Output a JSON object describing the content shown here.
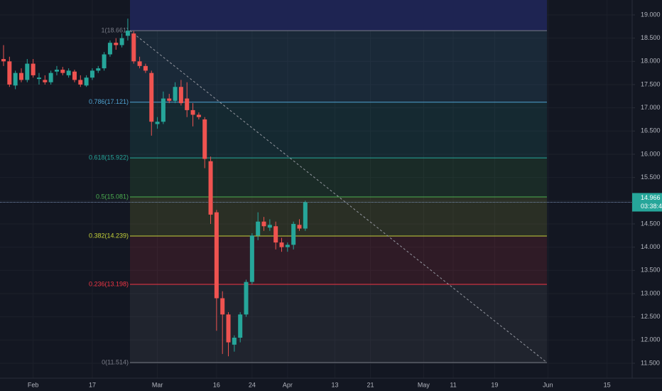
{
  "chart_data": {
    "type": "candlestick",
    "categories": [
      null,
      null,
      null,
      null,
      null,
      "Feb",
      null,
      null,
      null,
      null,
      null,
      null,
      null,
      null,
      null,
      "17",
      null,
      null,
      null,
      null,
      null,
      null,
      null,
      null,
      null,
      null,
      "Mar",
      null,
      null,
      null,
      null,
      null,
      null,
      null,
      null,
      null,
      "16",
      null,
      null,
      null,
      null,
      null,
      "24",
      null,
      null,
      null,
      null,
      null,
      "Apr",
      null,
      null,
      null,
      null,
      null,
      null,
      null,
      "13",
      null,
      null,
      null,
      null,
      null,
      "21",
      null,
      null,
      null,
      null,
      null,
      null,
      null,
      null,
      "May",
      null,
      null,
      null,
      null,
      "11",
      null,
      null,
      null,
      null,
      null,
      null,
      "19",
      null,
      null,
      null,
      null,
      null,
      null,
      null,
      null,
      "Jun",
      null,
      null,
      null,
      null,
      null,
      null,
      null,
      null,
      null,
      "15",
      null,
      null,
      null,
      null
    ],
    "open": [
      18.05,
      18.0,
      17.48,
      17.75,
      17.6,
      17.95,
      17.62,
      17.6,
      17.55,
      17.78,
      17.82,
      17.7,
      17.78,
      17.6,
      17.48,
      17.65,
      17.8,
      17.85,
      18.15,
      18.4,
      18.35,
      18.55,
      18.6,
      18.0,
      17.9,
      17.75,
      16.65,
      16.7,
      17.2,
      17.15,
      17.45,
      17.2,
      16.95,
      16.85,
      16.75,
      15.85,
      14.75,
      12.9,
      12.55,
      11.9,
      12.05,
      12.55,
      13.25,
      14.25,
      14.55,
      14.42,
      14.45,
      14.1,
      14.0,
      14.05,
      14.48,
      14.4,
      null,
      null,
      null,
      null,
      null,
      null,
      null,
      null,
      null,
      null,
      null,
      null,
      null,
      null,
      null,
      null,
      null,
      null,
      null,
      null,
      null,
      null,
      null,
      null,
      null,
      null,
      null,
      null,
      null,
      null,
      null,
      null,
      null,
      null,
      null,
      null,
      null,
      null,
      null,
      null,
      null,
      null,
      null,
      null,
      null,
      null,
      null,
      null,
      null,
      null,
      null,
      null,
      null,
      null,
      null
    ],
    "high": [
      18.35,
      18.1,
      17.8,
      17.85,
      18.05,
      18.05,
      17.75,
      17.7,
      17.8,
      17.9,
      17.88,
      17.85,
      17.82,
      17.7,
      17.7,
      17.85,
      17.9,
      18.2,
      18.45,
      18.5,
      18.6,
      18.92,
      18.65,
      18.1,
      17.95,
      17.8,
      16.8,
      17.35,
      17.3,
      17.55,
      17.6,
      17.55,
      17.1,
      16.9,
      16.8,
      15.95,
      14.8,
      13.05,
      12.6,
      12.1,
      12.6,
      13.3,
      14.3,
      14.75,
      14.65,
      14.6,
      14.55,
      14.2,
      14.1,
      14.55,
      14.6,
      15.0,
      null,
      null,
      null,
      null,
      null,
      null,
      null,
      null,
      null,
      null,
      null,
      null,
      null,
      null,
      null,
      null,
      null,
      null,
      null,
      null,
      null,
      null,
      null,
      null,
      null,
      null,
      null,
      null,
      null,
      null,
      null,
      null,
      null,
      null,
      null,
      null,
      null,
      null,
      null,
      null,
      null,
      null,
      null,
      null,
      null,
      null,
      null,
      null,
      null,
      null,
      null,
      null,
      null,
      null,
      null
    ],
    "low": [
      17.9,
      17.45,
      17.4,
      17.55,
      17.55,
      17.65,
      17.5,
      17.5,
      17.5,
      17.7,
      17.7,
      17.65,
      17.55,
      17.45,
      17.45,
      17.6,
      17.75,
      17.8,
      18.1,
      18.25,
      18.3,
      18.45,
      17.95,
      17.85,
      17.75,
      16.4,
      16.55,
      16.65,
      17.1,
      17.1,
      17.05,
      16.8,
      16.6,
      16.75,
      15.7,
      14.5,
      12.2,
      11.7,
      11.65,
      11.75,
      11.95,
      12.5,
      13.2,
      14.15,
      14.35,
      14.35,
      13.95,
      13.9,
      13.9,
      13.95,
      14.35,
      14.35,
      null,
      null,
      null,
      null,
      null,
      null,
      null,
      null,
      null,
      null,
      null,
      null,
      null,
      null,
      null,
      null,
      null,
      null,
      null,
      null,
      null,
      null,
      null,
      null,
      null,
      null,
      null,
      null,
      null,
      null,
      null,
      null,
      null,
      null,
      null,
      null,
      null,
      null,
      null,
      null,
      null,
      null,
      null,
      null,
      null,
      null,
      null,
      null,
      null,
      null,
      null,
      null,
      null,
      null,
      null
    ],
    "close": [
      18.0,
      17.5,
      17.75,
      17.6,
      17.95,
      17.7,
      17.65,
      17.55,
      17.75,
      17.82,
      17.75,
      17.8,
      17.6,
      17.5,
      17.65,
      17.8,
      17.85,
      18.15,
      18.4,
      18.35,
      18.5,
      18.66,
      18.0,
      17.9,
      17.8,
      16.7,
      16.7,
      17.2,
      17.15,
      17.45,
      17.1,
      16.95,
      16.85,
      16.8,
      15.9,
      14.7,
      12.9,
      12.55,
      11.95,
      12.05,
      12.55,
      13.25,
      14.25,
      14.55,
      14.45,
      14.48,
      14.1,
      14.0,
      14.05,
      14.5,
      14.4,
      14.966,
      null,
      null,
      null,
      null,
      null,
      null,
      null,
      null,
      null,
      null,
      null,
      null,
      null,
      null,
      null,
      null,
      null,
      null,
      null,
      null,
      null,
      null,
      null,
      null,
      null,
      null,
      null,
      null,
      null,
      null,
      null,
      null,
      null,
      null,
      null,
      null,
      null,
      null,
      null,
      null,
      null,
      null,
      null,
      null,
      null,
      null,
      null,
      null,
      null,
      null,
      null,
      null,
      null,
      null,
      null
    ],
    "up_color": "#26a69a",
    "down_color": "#ef5350",
    "ylim": [
      11.178,
      19.321
    ],
    "yticks": [
      {
        "value": 11.5,
        "label": "11.500"
      },
      {
        "value": 12,
        "label": "12.000"
      },
      {
        "value": 12.5,
        "label": "12.500"
      },
      {
        "value": 13,
        "label": "13.000"
      },
      {
        "value": 13.5,
        "label": "13.500"
      },
      {
        "value": 14,
        "label": "14.000"
      },
      {
        "value": 14.5,
        "label": "14.500"
      },
      {
        "value": 15,
        "label": "15.000"
      },
      {
        "value": 15.5,
        "label": "15.500"
      },
      {
        "value": 16,
        "label": "16.000"
      },
      {
        "value": 16.5,
        "label": "16.500"
      },
      {
        "value": 17,
        "label": "17.000"
      },
      {
        "value": 17.5,
        "label": "17.500"
      },
      {
        "value": 18,
        "label": "18.000"
      },
      {
        "value": 18.5,
        "label": "18.500"
      },
      {
        "value": 19,
        "label": "19.000"
      }
    ],
    "grid": true,
    "fib": {
      "values": [
        18.661,
        17.121,
        15.922,
        15.081,
        14.239,
        13.198,
        11.514
      ],
      "value_labels": [
        "1(18.661)",
        "0.786(17.121)",
        "0.618(15.922)",
        "0.5(15.081)",
        "0.382(14.239)",
        "0.236(13.198)",
        "0(11.514)"
      ],
      "colors": [
        "#787b86",
        "#4fa3d1",
        "#26a69a",
        "#4caf50",
        "#c6d23a",
        "#f23645",
        "#787b86"
      ]
    },
    "last_price": 14.966,
    "countdown": "03:38:46"
  }
}
